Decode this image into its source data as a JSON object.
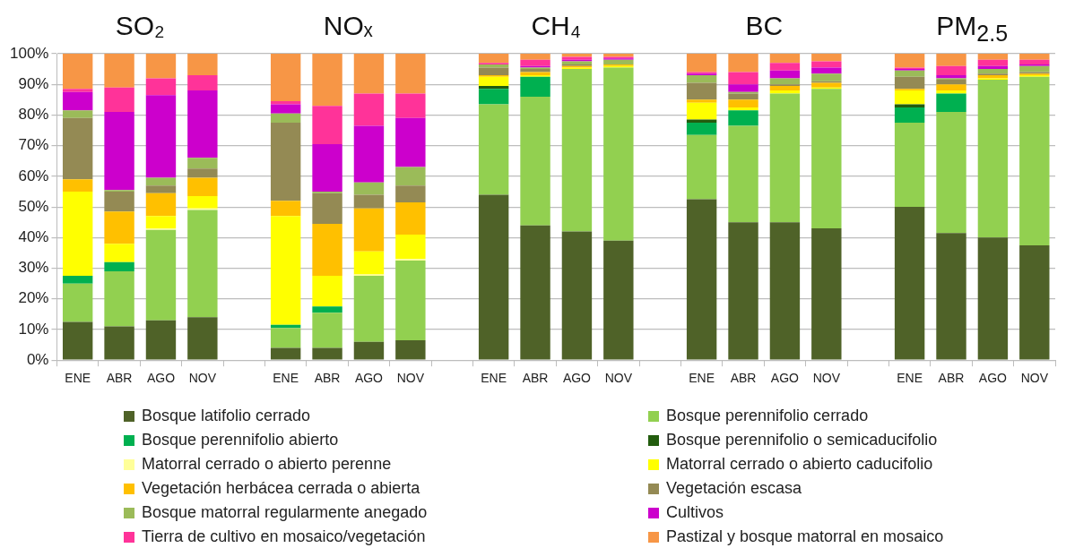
{
  "chart_data": {
    "type": "bar",
    "stacked": true,
    "annotations": [
      "SO₂",
      "NOₓ",
      "CH₄",
      "BC",
      "PM$_{2.5}$"
    ],
    "categories": [
      "ENE",
      "ABR",
      "AGO",
      "NOV",
      null,
      "ENE",
      "ABR",
      "AGO",
      "NOV",
      null,
      "ENE",
      "ABR",
      "AGO",
      "NOV",
      null,
      "ENE",
      "ABR",
      "AGO",
      "NOV",
      null,
      "ENE",
      "ABR",
      "AGO",
      "NOV"
    ],
    "ylim": [
      0,
      100
    ],
    "yticks": [
      {
        "value": 0,
        "label": "0%"
      },
      {
        "value": 10,
        "label": "10%"
      },
      {
        "value": 20,
        "label": "20%"
      },
      {
        "value": 30,
        "label": "30%"
      },
      {
        "value": 40,
        "label": "40%"
      },
      {
        "value": 50,
        "label": "50%"
      },
      {
        "value": 60,
        "label": "60%"
      },
      {
        "value": 70,
        "label": "70%"
      },
      {
        "value": 80,
        "label": "80%"
      },
      {
        "value": 90,
        "label": "90%"
      },
      {
        "value": 100,
        "label": "100%"
      }
    ],
    "grid": "y",
    "legend": "bottom",
    "series": [
      {
        "name": "Bosque latifolio cerrado",
        "color": "#4f6228",
        "values": [
          12.5,
          11,
          13,
          14,
          null,
          4,
          4,
          6,
          6.5,
          null,
          54,
          44,
          42,
          39,
          null,
          52.5,
          45,
          45,
          43,
          null,
          50,
          41.5,
          40,
          37.5
        ]
      },
      {
        "name": "Bosque perennifolio cerrado",
        "color": "#92d050",
        "values": [
          12.5,
          18,
          29.5,
          35,
          null,
          6.5,
          11.5,
          21.5,
          26,
          null,
          29.5,
          42,
          53,
          56.5,
          null,
          21,
          31.5,
          42,
          45.5,
          null,
          27.5,
          39.5,
          51.5,
          55
        ]
      },
      {
        "name": "Bosque perennifolio abierto",
        "color": "#00b050",
        "values": [
          2.5,
          3,
          0,
          0,
          null,
          1,
          2,
          0,
          0,
          null,
          5,
          6.5,
          0,
          0,
          null,
          4,
          5,
          0,
          0,
          null,
          5,
          6,
          0,
          0
        ]
      },
      {
        "name": "Bosque perennifolio o semicaducifolio",
        "color": "#225c0e",
        "values": [
          0,
          0,
          0,
          0,
          null,
          0,
          0,
          0,
          0,
          null,
          1,
          0,
          0,
          0,
          null,
          1,
          0,
          0,
          0,
          null,
          1,
          0,
          0,
          0
        ]
      },
      {
        "name": "Matorral cerrado o abierto perenne",
        "color": "#ffff99",
        "values": [
          0,
          0,
          0.5,
          0.5,
          null,
          0,
          0,
          0.5,
          0.5,
          null,
          0,
          0,
          0,
          0,
          null,
          0,
          0,
          0,
          0,
          null,
          0,
          0,
          0,
          0
        ]
      },
      {
        "name": "Matorral cerrado o abierto caducifolio",
        "color": "#ffff00",
        "values": [
          27.5,
          6,
          4,
          4,
          null,
          35.5,
          10,
          7.5,
          8,
          null,
          3,
          0.5,
          0.5,
          0.5,
          null,
          5.5,
          1,
          1,
          0.5,
          null,
          4.5,
          1,
          0.5,
          0.5
        ]
      },
      {
        "name": "Vegetación herbácea cerrada o abierta",
        "color": "#ffc000",
        "values": [
          4,
          10.5,
          7.5,
          6,
          null,
          5,
          17,
          14,
          10.5,
          null,
          0.5,
          1,
          0.5,
          0.5,
          null,
          1,
          2.5,
          1.5,
          1.5,
          null,
          0.5,
          2,
          1,
          0.5
        ]
      },
      {
        "name": "Vegetación escasa",
        "color": "#948a54",
        "values": [
          20,
          6.5,
          2.5,
          3,
          null,
          25.5,
          10,
          4.5,
          5.5,
          null,
          2.5,
          1,
          0.5,
          0,
          null,
          5.5,
          2,
          0.5,
          0.5,
          null,
          4,
          1.5,
          0.5,
          0.5
        ]
      },
      {
        "name": "Bosque matorral regularmente anegado",
        "color": "#9bbb59",
        "values": [
          2.5,
          0.5,
          2.5,
          3.5,
          null,
          3,
          0.5,
          4,
          6,
          null,
          1,
          0.5,
          1,
          1.5,
          null,
          2.5,
          0.5,
          2,
          2.5,
          null,
          2,
          0.5,
          1.5,
          2
        ]
      },
      {
        "name": "Cultivos",
        "color": "#cc00cc",
        "values": [
          6,
          25.5,
          27,
          22,
          null,
          3,
          15.5,
          18.5,
          16,
          null,
          0,
          0.5,
          0.5,
          0.5,
          null,
          0.5,
          2.5,
          2.5,
          2,
          null,
          0.5,
          1,
          1,
          0.5
        ]
      },
      {
        "name": "Tierra de cultivo en mosaico/vegetación",
        "color": "#ff3399",
        "values": [
          1,
          8,
          5.5,
          5,
          null,
          1,
          12.5,
          10.5,
          8,
          null,
          0.5,
          2,
          1,
          0.5,
          null,
          0.5,
          4,
          2.5,
          2,
          null,
          0.5,
          3,
          2,
          1.5
        ]
      },
      {
        "name": "Pastizal y bosque matorral en mosaico",
        "color": "#f79646",
        "values": [
          11.5,
          11,
          8,
          7,
          null,
          15.5,
          17,
          13,
          13,
          null,
          3,
          2,
          1,
          1,
          null,
          6,
          6,
          3,
          2.5,
          null,
          4.5,
          4,
          2,
          2
        ]
      }
    ]
  }
}
